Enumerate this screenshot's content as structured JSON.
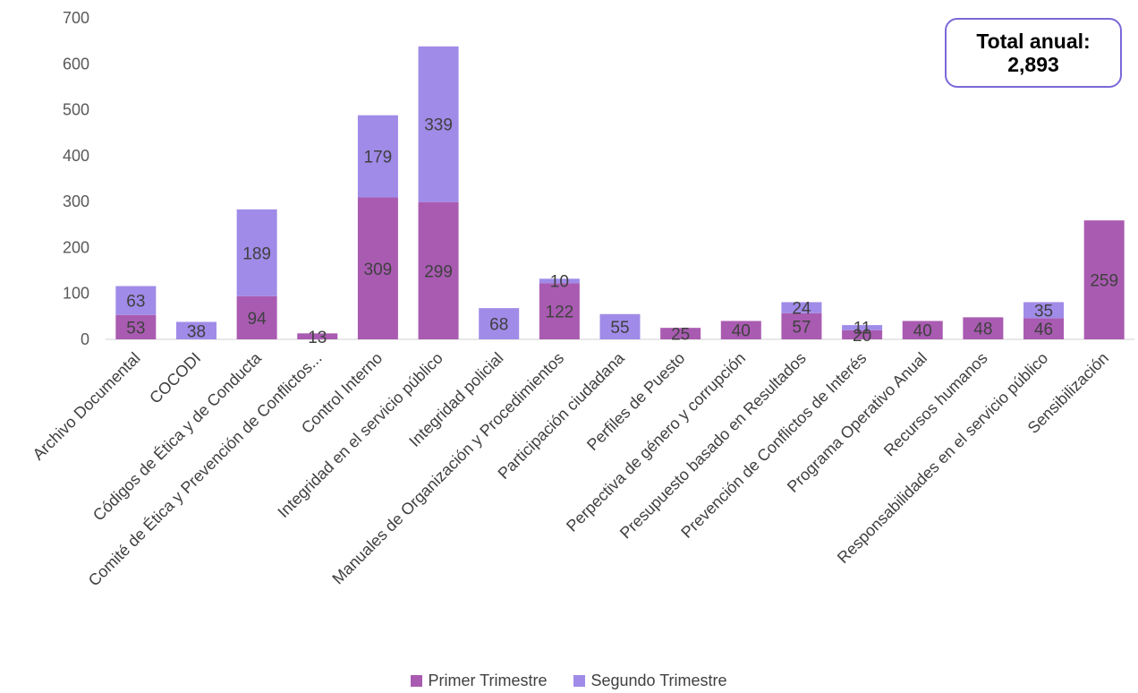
{
  "chart_data": {
    "type": "bar",
    "stacked": true,
    "categories": [
      "Archivo Documental",
      "COCODI",
      "Códigos de Ética y de Conducta",
      "Comité de Ética y Prevención de Conflictos...",
      "Control Interno",
      "Integridad en el servicio público",
      "Integridad policial",
      "Manuales de Organización y Procedimientos",
      "Participación ciudadana",
      "Perfiles de Puesto",
      "Perpectiva de género y corrupción",
      "Presupuesto basado en Resultados",
      "Prevención de Conflictos de Interés",
      "Programa Operativo Anual",
      "Recursos humanos",
      "Responsabilidades en el servicio público",
      "Sensibilización"
    ],
    "series": [
      {
        "name": "Primer Trimestre",
        "color": "#A95BB1",
        "values": [
          53,
          null,
          94,
          13,
          309,
          299,
          null,
          122,
          null,
          25,
          40,
          57,
          20,
          40,
          48,
          46,
          259
        ]
      },
      {
        "name": "Segundo Trimestre",
        "color": "#A08BE8",
        "values": [
          63,
          38,
          189,
          null,
          179,
          339,
          68,
          10,
          55,
          null,
          null,
          24,
          11,
          null,
          null,
          35,
          null
        ]
      }
    ],
    "ylim": [
      0,
      700
    ],
    "yticks": [
      0,
      100,
      200,
      300,
      400,
      500,
      600,
      700
    ],
    "grid": false,
    "legend": "bottom"
  },
  "annotation": {
    "line1": "Total anual:",
    "line2": "2,893"
  },
  "legend": {
    "primer": "Primer Trimestre",
    "segundo": "Segundo Trimestre"
  }
}
